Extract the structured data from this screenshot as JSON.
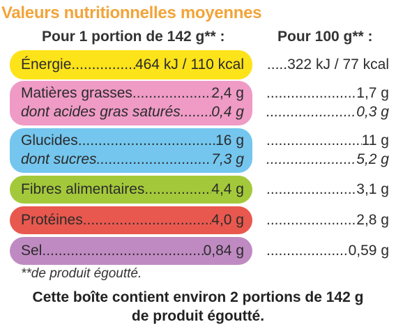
{
  "title": "Valeurs nutritionnelles moyennes",
  "headers": {
    "per_portion": "Pour 1 portion de 142 g** :",
    "per_100g": "Pour 100 g** :"
  },
  "colors": {
    "title": "#f2a43a",
    "energie": "#fde31a",
    "matieres_grasses": "#ef9bc6",
    "glucides": "#74c6ee",
    "fibres": "#a3c93a",
    "proteines": "#e8584e",
    "sel": "#bf8ac2"
  },
  "rows": {
    "energie": {
      "label": "Énergie",
      "portion": "464 kJ / 110 kcal",
      "per100": ".....322 kJ / 77 kcal"
    },
    "matieres_grasses": {
      "label": "Matières grasses",
      "portion": "2,4 g",
      "per100": "1,7 g"
    },
    "acides_gras": {
      "label": "dont acides gras saturés",
      "portion": "0,4 g",
      "per100": "0,3 g"
    },
    "glucides": {
      "label": "Glucides",
      "portion": "16 g",
      "per100": "11 g"
    },
    "sucres": {
      "label": "dont sucres",
      "portion": "7,3 g",
      "per100": "5,2 g"
    },
    "fibres": {
      "label": "Fibres alimentaires",
      "portion": "4,4 g",
      "per100": "3,1 g"
    },
    "proteines": {
      "label": "Protéines",
      "portion": "4,0 g",
      "per100": "2,8 g"
    },
    "sel": {
      "label": "Sel",
      "portion": "0,84 g",
      "per100": "0,59 g"
    }
  },
  "footnote": "**de produit égoutté.",
  "note_line1": "Cette boîte contient environ 2 portions de 142 g",
  "note_line2": "de produit égoutté."
}
